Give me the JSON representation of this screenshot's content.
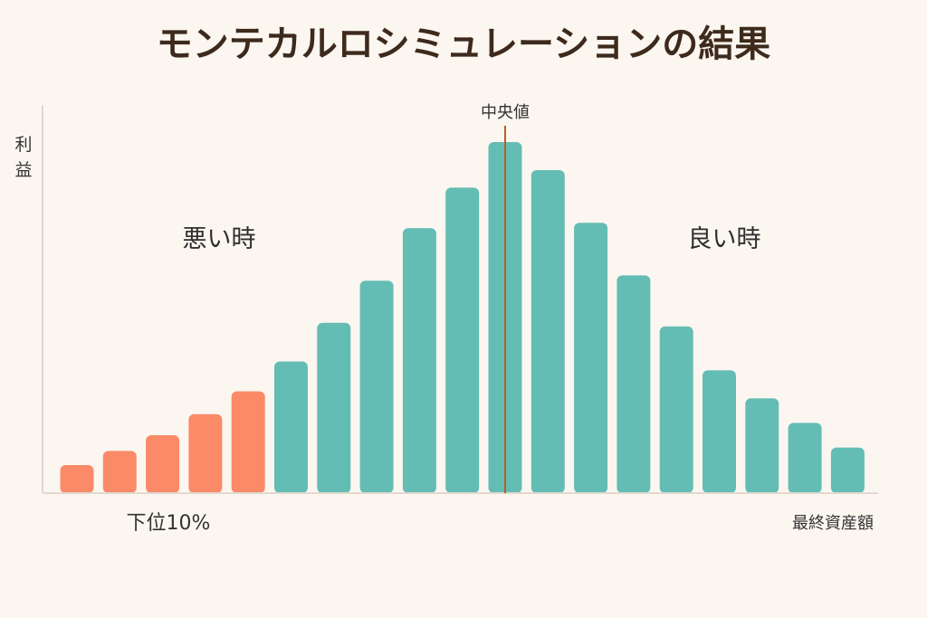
{
  "chart_data": {
    "type": "bar",
    "title": "モンテカルロシミュレーションの結果",
    "ylabel": "利益",
    "xlabel": "最終資産額",
    "categories": [
      "",
      "",
      "",
      "",
      "",
      "",
      "",
      "",
      "",
      "",
      "",
      "",
      "",
      "",
      "",
      "",
      "",
      "",
      ""
    ],
    "values": [
      8,
      12,
      16.5,
      22.5,
      29,
      37.5,
      48.5,
      60.5,
      75.5,
      87,
      100,
      92,
      77,
      62,
      47.5,
      35,
      27,
      20,
      13
    ],
    "ylim": [
      0,
      100
    ],
    "grid": false,
    "legend": "none",
    "highlight": {
      "label": "下位10%",
      "bar_indices": [
        0,
        1,
        2,
        3,
        4
      ],
      "color": "#fa8a68"
    },
    "base_color": "#64bdb4",
    "median": {
      "label": "中央値",
      "bar_index": 10,
      "color": "#b5622c"
    },
    "annotations": [
      {
        "text": "悪い時",
        "side": "left"
      },
      {
        "text": "良い時",
        "side": "right"
      }
    ]
  }
}
